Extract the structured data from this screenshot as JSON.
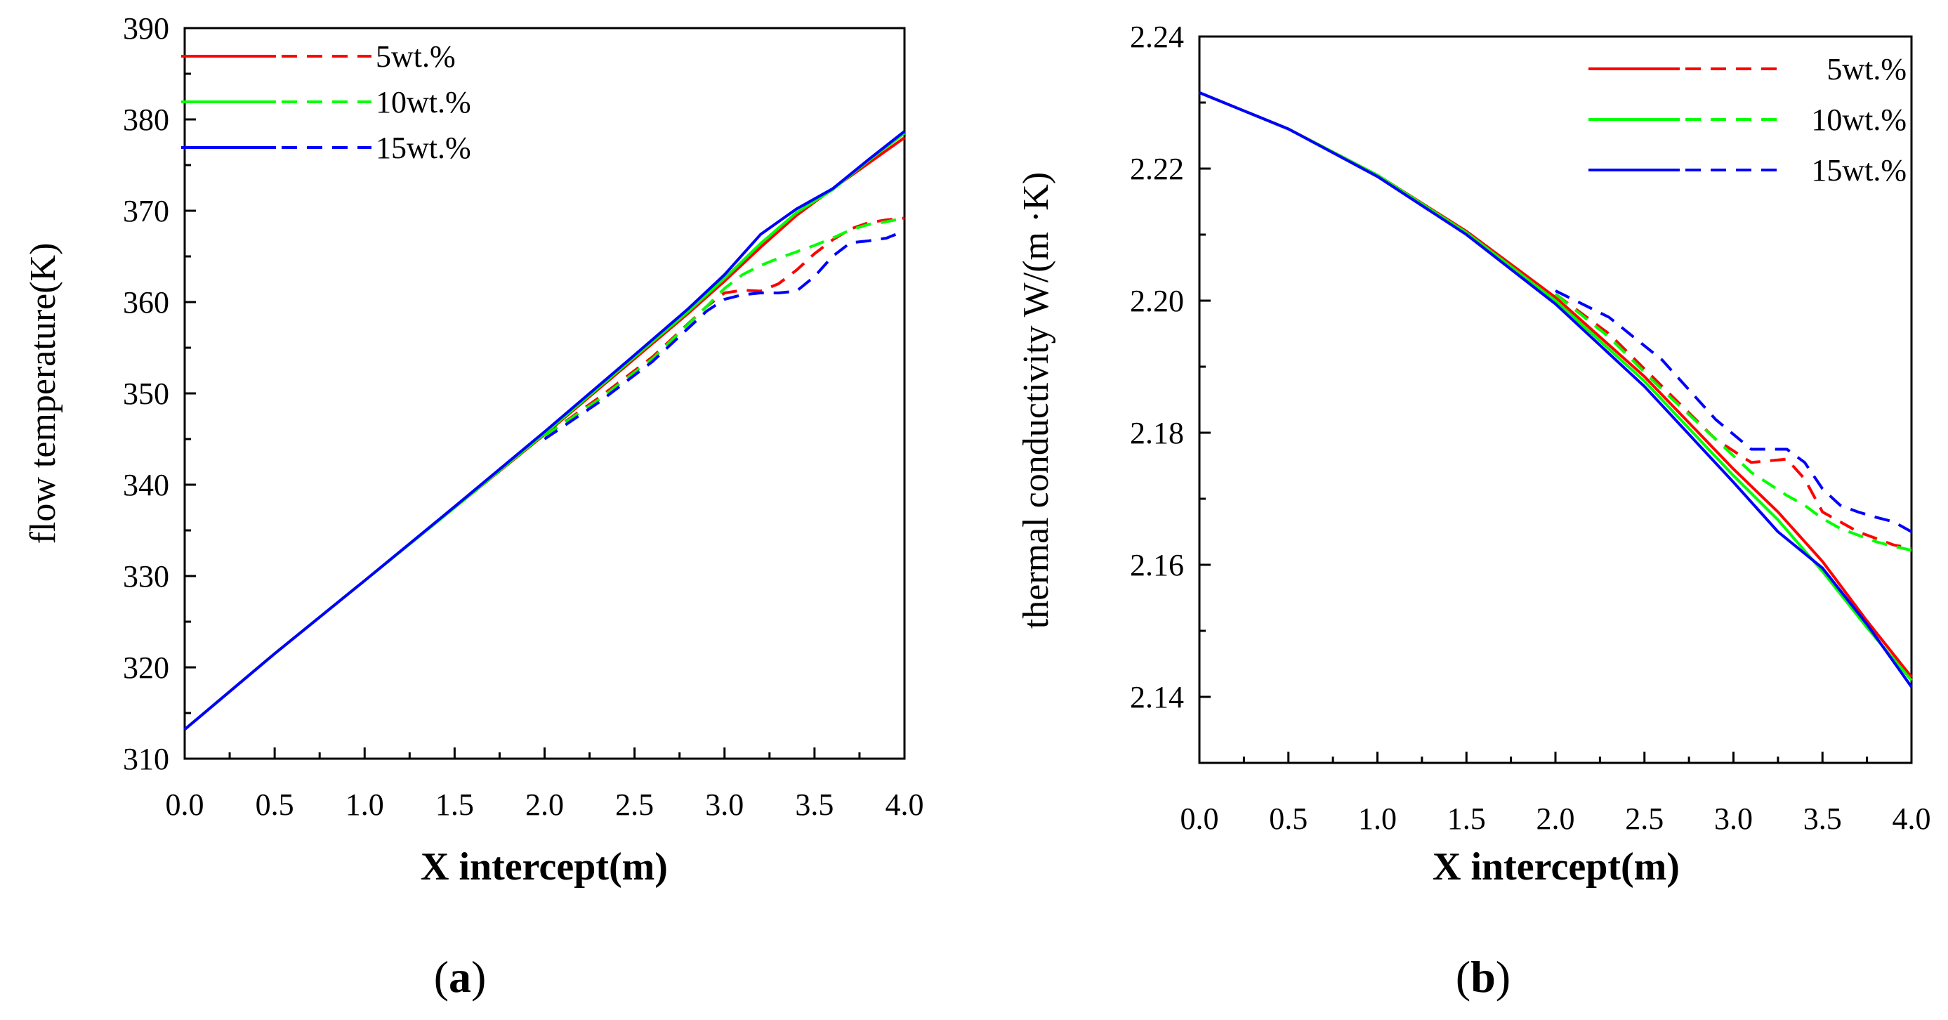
{
  "chart_data": [
    {
      "type": "line",
      "panel": "a",
      "xlabel": "X intercept(m)",
      "ylabel": "flow temperature(K)",
      "xlim": [
        0.0,
        4.0
      ],
      "ylim": [
        310,
        390
      ],
      "xticks": [
        0.0,
        0.5,
        1.0,
        1.5,
        2.0,
        2.5,
        3.0,
        3.5,
        4.0
      ],
      "xtick_labels": [
        "0.0",
        "0.5",
        "1.0",
        "1.5",
        "2.0",
        "2.5",
        "3.0",
        "3.5",
        "4.0"
      ],
      "yticks": [
        310,
        320,
        330,
        340,
        350,
        360,
        370,
        380,
        390
      ],
      "ytick_labels": [
        "310",
        "320",
        "330",
        "340",
        "350",
        "360",
        "370",
        "380",
        "390"
      ],
      "legend_position": "top-left",
      "legend": [
        {
          "label": "5wt.%",
          "color": "#ff0000"
        },
        {
          "label": "10wt.%",
          "color": "#00ff00"
        },
        {
          "label": "15wt.%",
          "color": "#0000ff"
        }
      ],
      "series": [
        {
          "name": "5wt.% solid",
          "color": "#ff0000",
          "dash": false,
          "x": [
            0.0,
            0.5,
            1.0,
            1.5,
            2.0,
            2.5,
            2.8,
            3.0,
            3.2,
            3.4,
            3.6,
            3.8,
            4.0
          ],
          "y": [
            313.2,
            321.5,
            329.5,
            337.5,
            345.5,
            353.8,
            358.8,
            362.3,
            366.0,
            369.5,
            372.4,
            375.2,
            378.0
          ]
        },
        {
          "name": "10wt.% solid",
          "color": "#00ff00",
          "dash": false,
          "x": [
            0.0,
            0.5,
            1.0,
            1.5,
            2.0,
            2.5,
            2.8,
            3.0,
            3.2,
            3.4,
            3.6,
            3.8,
            4.0
          ],
          "y": [
            313.2,
            321.5,
            329.5,
            337.5,
            345.6,
            354.0,
            359.0,
            362.6,
            366.4,
            369.8,
            372.3,
            375.5,
            378.5
          ]
        },
        {
          "name": "15wt.% solid",
          "color": "#0000ff",
          "dash": false,
          "x": [
            0.0,
            0.5,
            1.0,
            1.5,
            2.0,
            2.5,
            2.8,
            3.0,
            3.2,
            3.4,
            3.6,
            3.8,
            4.0
          ],
          "y": [
            313.2,
            321.5,
            329.5,
            337.6,
            345.8,
            354.2,
            359.3,
            363.0,
            367.4,
            370.2,
            372.4,
            375.6,
            378.7
          ]
        },
        {
          "name": "5wt.% dashed",
          "color": "#ff0000",
          "dash": true,
          "x": [
            2.0,
            2.3,
            2.6,
            2.9,
            3.0,
            3.1,
            3.2,
            3.3,
            3.4,
            3.5,
            3.6,
            3.7,
            3.8,
            3.9,
            4.0
          ],
          "y": [
            345.3,
            349.5,
            354.0,
            359.5,
            361.0,
            361.3,
            361.2,
            362.0,
            363.5,
            365.3,
            366.8,
            368.0,
            368.7,
            369.0,
            369.2
          ]
        },
        {
          "name": "10wt.% dashed",
          "color": "#00ff00",
          "dash": true,
          "x": [
            2.0,
            2.3,
            2.6,
            2.9,
            3.0,
            3.1,
            3.2,
            3.3,
            3.4,
            3.5,
            3.6,
            3.7,
            3.8,
            3.9,
            4.0
          ],
          "y": [
            345.3,
            349.3,
            353.8,
            359.5,
            361.5,
            363.0,
            364.0,
            364.8,
            365.5,
            366.2,
            367.0,
            367.9,
            368.5,
            368.8,
            369.2
          ]
        },
        {
          "name": "15wt.% dashed",
          "color": "#0000ff",
          "dash": true,
          "x": [
            2.0,
            2.3,
            2.6,
            2.9,
            3.0,
            3.1,
            3.2,
            3.3,
            3.4,
            3.5,
            3.6,
            3.7,
            3.8,
            3.9,
            4.0
          ],
          "y": [
            345.0,
            349.0,
            353.5,
            359.0,
            360.3,
            360.8,
            361.0,
            361.0,
            361.2,
            362.8,
            365.0,
            366.5,
            366.7,
            367.0,
            367.8
          ]
        }
      ]
    },
    {
      "type": "line",
      "panel": "b",
      "xlabel": "X intercept(m)",
      "ylabel": "thermal conductivity W/(m ·K)",
      "xlim": [
        0.0,
        4.0
      ],
      "ylim": [
        2.13,
        2.24
      ],
      "xticks": [
        0.0,
        0.5,
        1.0,
        1.5,
        2.0,
        2.5,
        3.0,
        3.5,
        4.0
      ],
      "xtick_labels": [
        "0.0",
        "0.5",
        "1.0",
        "1.5",
        "2.0",
        "2.5",
        "3.0",
        "3.5",
        "4.0"
      ],
      "yticks": [
        2.14,
        2.16,
        2.18,
        2.2,
        2.22,
        2.24
      ],
      "ytick_labels": [
        "2.14",
        "2.16",
        "2.18",
        "2.20",
        "2.22",
        "2.24"
      ],
      "legend_position": "top-right",
      "legend": [
        {
          "label": "5wt.%",
          "color": "#ff0000"
        },
        {
          "label": "10wt.%",
          "color": "#00ff00"
        },
        {
          "label": "15wt.%",
          "color": "#0000ff"
        }
      ],
      "series": [
        {
          "name": "5wt.% solid",
          "color": "#ff0000",
          "dash": false,
          "x": [
            0.0,
            0.5,
            1.0,
            1.5,
            2.0,
            2.5,
            3.0,
            3.25,
            3.5,
            3.75,
            4.0
          ],
          "y": [
            2.2315,
            2.226,
            2.219,
            2.2105,
            2.2005,
            2.1885,
            2.1745,
            2.168,
            2.1605,
            2.1515,
            2.143
          ]
        },
        {
          "name": "10wt.% solid",
          "color": "#00ff00",
          "dash": false,
          "x": [
            0.0,
            0.5,
            1.0,
            1.5,
            2.0,
            2.5,
            3.0,
            3.25,
            3.5,
            3.75,
            4.0
          ],
          "y": [
            2.2315,
            2.226,
            2.219,
            2.2103,
            2.2,
            2.1878,
            2.1735,
            2.1668,
            2.159,
            2.1505,
            2.1425
          ]
        },
        {
          "name": "15wt.% solid",
          "color": "#0000ff",
          "dash": false,
          "x": [
            0.0,
            0.5,
            1.0,
            1.5,
            2.0,
            2.5,
            3.0,
            3.25,
            3.5,
            3.75,
            4.0
          ],
          "y": [
            2.2315,
            2.226,
            2.2188,
            2.21,
            2.1995,
            2.187,
            2.1725,
            2.165,
            2.1595,
            2.151,
            2.1415
          ]
        },
        {
          "name": "5wt.% dashed",
          "color": "#ff0000",
          "dash": true,
          "x": [
            2.0,
            2.3,
            2.6,
            2.9,
            3.1,
            3.3,
            3.4,
            3.5,
            3.6,
            3.7,
            3.8,
            3.9,
            4.0
          ],
          "y": [
            2.201,
            2.195,
            2.187,
            2.179,
            2.1755,
            2.176,
            2.173,
            2.168,
            2.1665,
            2.165,
            2.164,
            2.163,
            2.1625
          ]
        },
        {
          "name": "10wt.% dashed",
          "color": "#00ff00",
          "dash": true,
          "x": [
            2.0,
            2.3,
            2.6,
            2.9,
            3.1,
            3.3,
            3.4,
            3.5,
            3.6,
            3.7,
            3.8,
            3.9,
            4.0
          ],
          "y": [
            2.201,
            2.1945,
            2.1865,
            2.179,
            2.174,
            2.1705,
            2.169,
            2.167,
            2.1655,
            2.1645,
            2.1635,
            2.1628,
            2.1622
          ]
        },
        {
          "name": "15wt.% dashed",
          "color": "#0000ff",
          "dash": true,
          "x": [
            2.0,
            2.3,
            2.6,
            2.9,
            3.1,
            3.2,
            3.3,
            3.4,
            3.5,
            3.6,
            3.7,
            3.8,
            3.9,
            4.0
          ],
          "y": [
            2.2015,
            2.1975,
            2.191,
            2.182,
            2.1775,
            2.1775,
            2.1775,
            2.1755,
            2.1715,
            2.169,
            2.168,
            2.1672,
            2.1665,
            2.165
          ]
        }
      ]
    }
  ],
  "captions": [
    {
      "letter": "a",
      "open": "(",
      "close": ")"
    },
    {
      "letter": "b",
      "open": "(",
      "close": ")"
    }
  ]
}
